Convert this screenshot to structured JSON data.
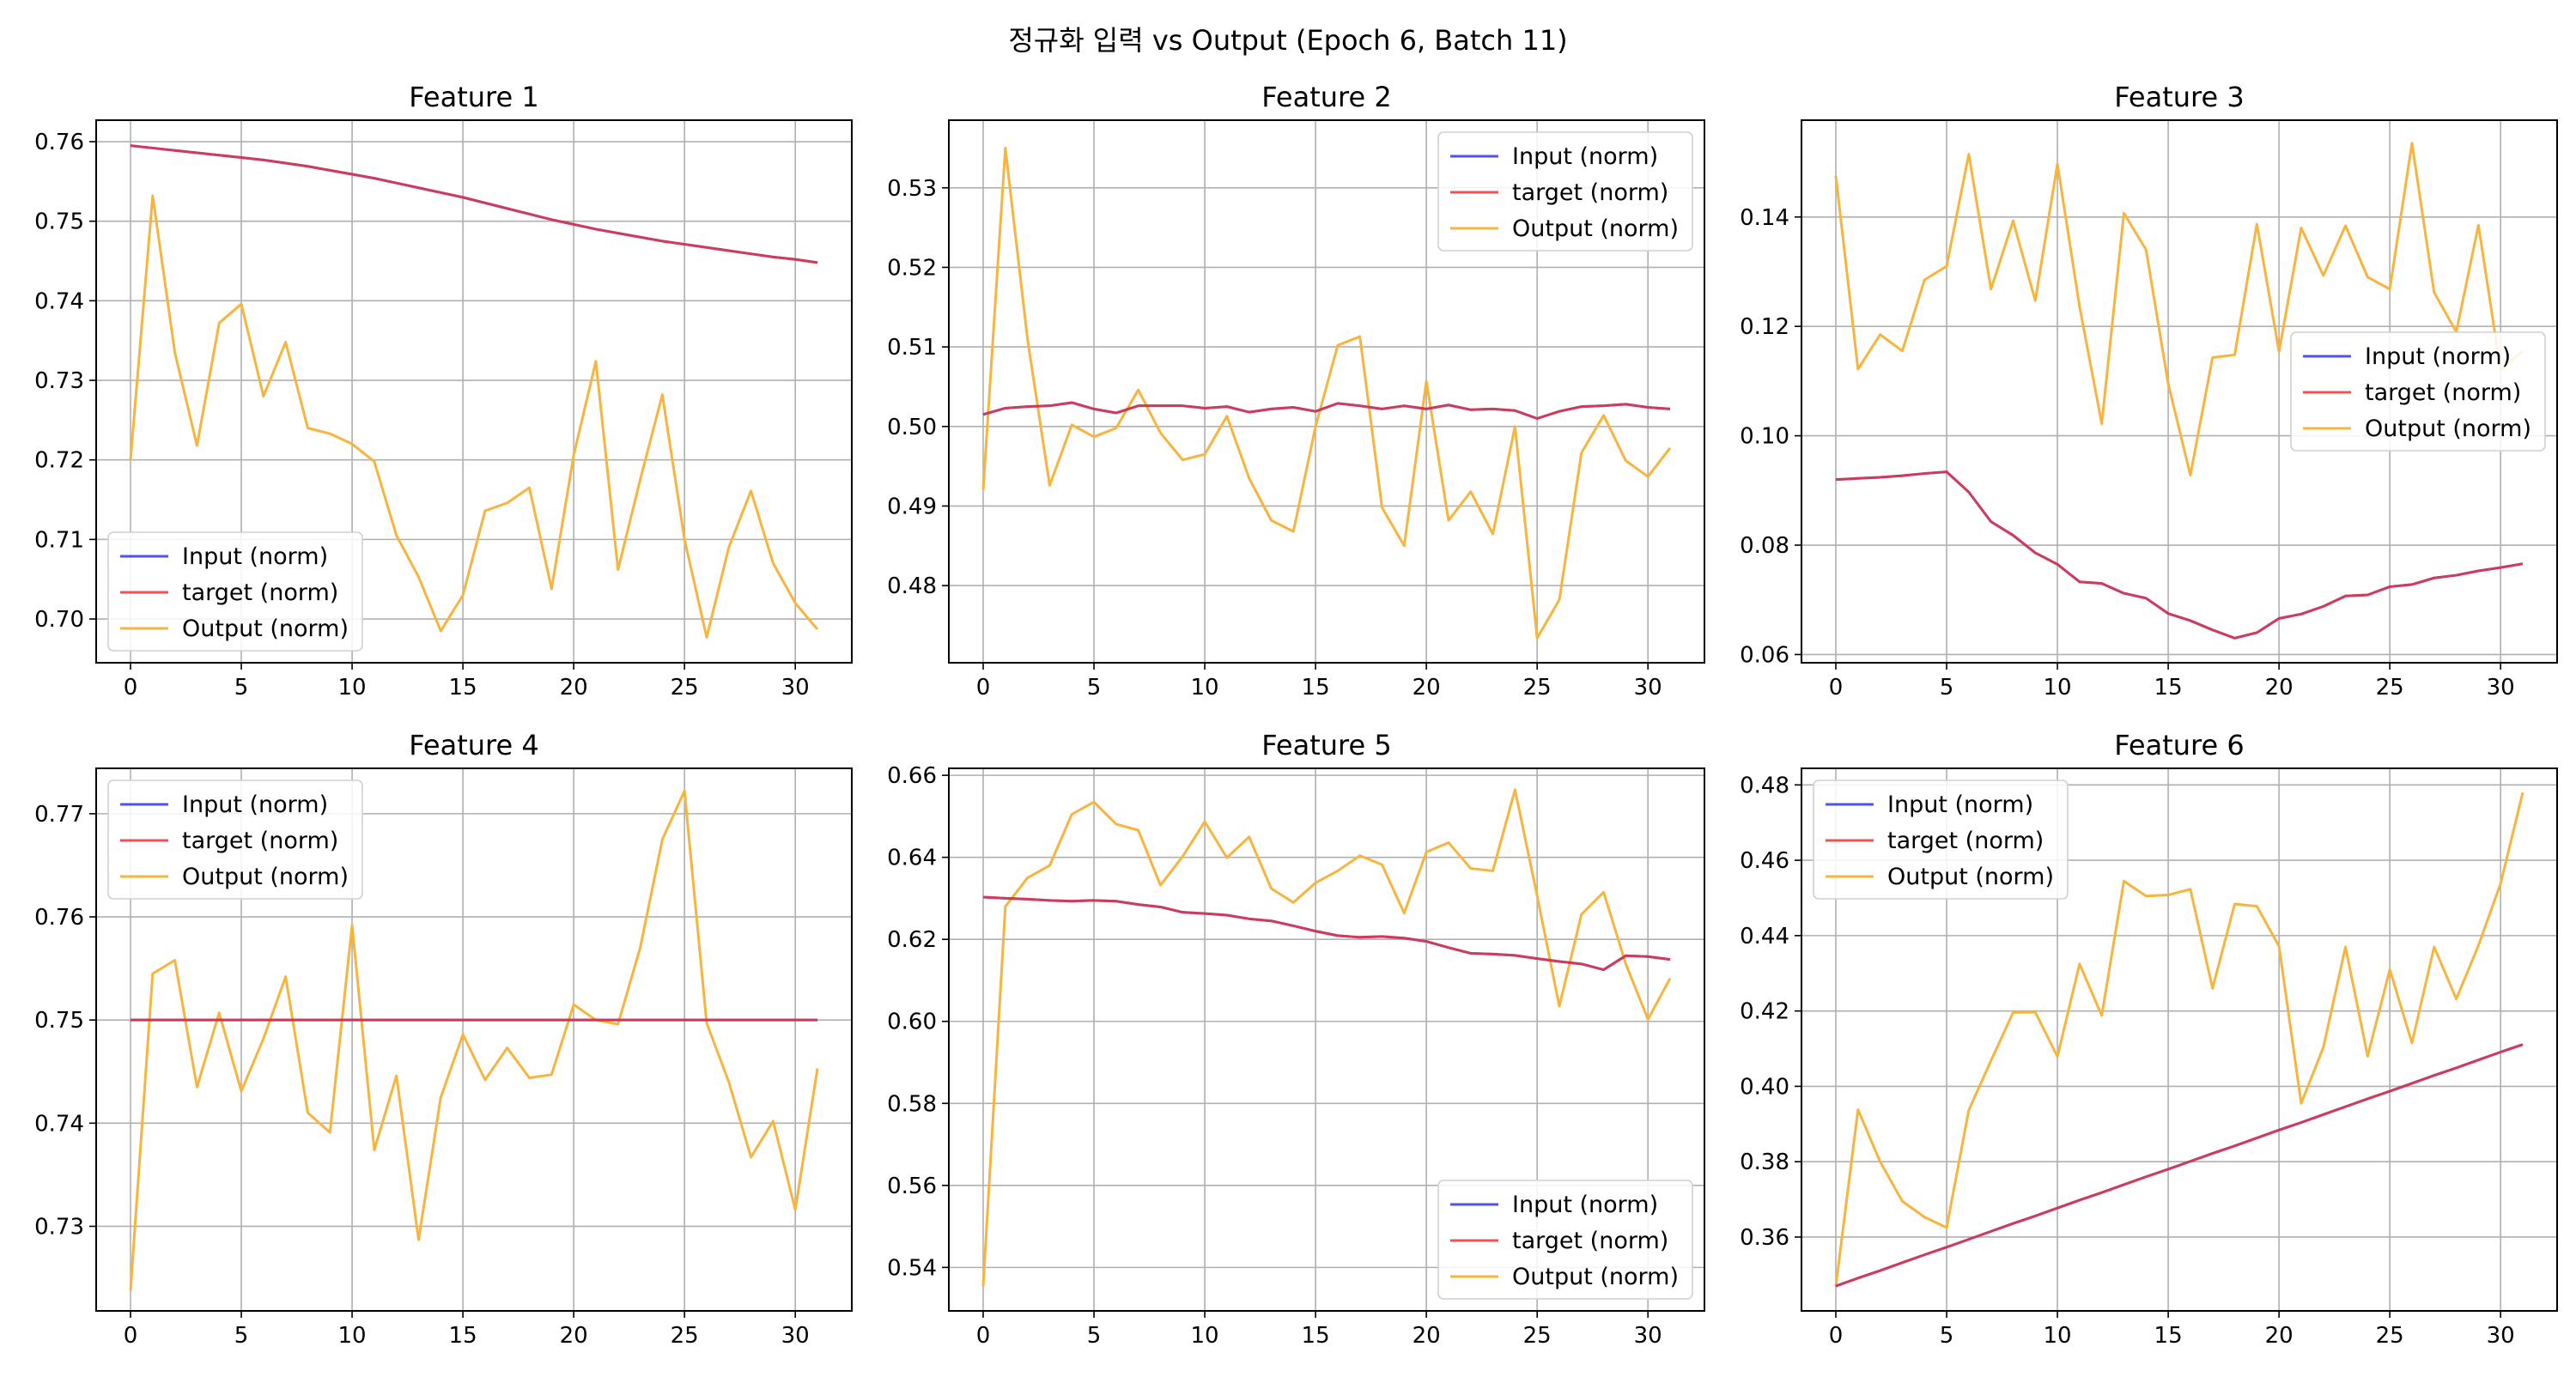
{
  "suptitle": "정규화 입력 vs Output (Epoch 6, Batch 11)",
  "legend_labels": [
    "Input (norm)",
    "target (norm)",
    "Output (norm)"
  ],
  "colors": {
    "input": "#3333ee",
    "target": "#ee3333",
    "overlap": "#c0134d",
    "output": "#f8b43c",
    "grid": "#b0b0b0"
  },
  "chart_data": [
    {
      "type": "line",
      "title": "Feature 1",
      "x": [
        0,
        1,
        2,
        3,
        4,
        5,
        6,
        7,
        8,
        9,
        10,
        11,
        12,
        13,
        14,
        15,
        16,
        17,
        18,
        19,
        20,
        21,
        22,
        23,
        24,
        25,
        26,
        27,
        28,
        29,
        30,
        31
      ],
      "xlim": [
        -1.55,
        32.55
      ],
      "xticks": [
        0,
        5,
        10,
        15,
        20,
        25,
        30
      ],
      "ylim": [
        0.6945,
        0.7627
      ],
      "yticks": [
        0.7,
        0.71,
        0.72,
        0.73,
        0.74,
        0.75,
        0.76
      ],
      "ytick_labels": [
        "0.70",
        "0.71",
        "0.72",
        "0.73",
        "0.74",
        "0.75",
        "0.76"
      ],
      "legend_loc": "lower-left",
      "series": [
        {
          "name": "Input (norm)",
          "values": [
            0.7595,
            0.7592,
            0.7589,
            0.7586,
            0.7583,
            0.758,
            0.7577,
            0.7573,
            0.7569,
            0.7564,
            0.7559,
            0.7554,
            0.7548,
            0.7542,
            0.7536,
            0.753,
            0.7523,
            0.7516,
            0.7509,
            0.7502,
            0.7496,
            0.749,
            0.7485,
            0.748,
            0.7475,
            0.7471,
            0.7467,
            0.7463,
            0.7459,
            0.7455,
            0.7452,
            0.7448
          ]
        },
        {
          "name": "target (norm)",
          "values": [
            0.7595,
            0.7592,
            0.7589,
            0.7586,
            0.7583,
            0.758,
            0.7577,
            0.7573,
            0.7569,
            0.7564,
            0.7559,
            0.7554,
            0.7548,
            0.7542,
            0.7536,
            0.753,
            0.7523,
            0.7516,
            0.7509,
            0.7502,
            0.7496,
            0.749,
            0.7485,
            0.748,
            0.7475,
            0.7471,
            0.7467,
            0.7463,
            0.7459,
            0.7455,
            0.7452,
            0.7448
          ]
        },
        {
          "name": "Output (norm)",
          "values": [
            0.72,
            0.7532,
            0.7335,
            0.7218,
            0.7372,
            0.7396,
            0.728,
            0.7348,
            0.724,
            0.7233,
            0.722,
            0.7198,
            0.7105,
            0.7053,
            0.6985,
            0.703,
            0.7136,
            0.7146,
            0.7165,
            0.7038,
            0.7206,
            0.7324,
            0.7062,
            0.7175,
            0.7282,
            0.71,
            0.6977,
            0.709,
            0.7161,
            0.707,
            0.702,
            0.6987
          ]
        }
      ]
    },
    {
      "type": "line",
      "title": "Feature 2",
      "x": [
        0,
        1,
        2,
        3,
        4,
        5,
        6,
        7,
        8,
        9,
        10,
        11,
        12,
        13,
        14,
        15,
        16,
        17,
        18,
        19,
        20,
        21,
        22,
        23,
        24,
        25,
        26,
        27,
        28,
        29,
        30,
        31
      ],
      "xlim": [
        -1.55,
        32.55
      ],
      "xticks": [
        0,
        5,
        10,
        15,
        20,
        25,
        30
      ],
      "ylim": [
        0.4703,
        0.5385
      ],
      "yticks": [
        0.48,
        0.49,
        0.5,
        0.51,
        0.52,
        0.53
      ],
      "ytick_labels": [
        "0.48",
        "0.49",
        "0.50",
        "0.51",
        "0.52",
        "0.53"
      ],
      "legend_loc": "upper-right",
      "series": [
        {
          "name": "Input (norm)",
          "values": [
            0.5015,
            0.5023,
            0.5025,
            0.5026,
            0.503,
            0.5022,
            0.5017,
            0.5026,
            0.5026,
            0.5026,
            0.5023,
            0.5025,
            0.5018,
            0.5022,
            0.5024,
            0.5019,
            0.5029,
            0.5026,
            0.5022,
            0.5026,
            0.5022,
            0.5027,
            0.5021,
            0.5022,
            0.502,
            0.501,
            0.5019,
            0.5025,
            0.5026,
            0.5028,
            0.5024,
            0.5022
          ]
        },
        {
          "name": "target (norm)",
          "values": [
            0.5015,
            0.5023,
            0.5025,
            0.5026,
            0.503,
            0.5022,
            0.5017,
            0.5026,
            0.5026,
            0.5026,
            0.5023,
            0.5025,
            0.5018,
            0.5022,
            0.5024,
            0.5019,
            0.5029,
            0.5026,
            0.5022,
            0.5026,
            0.5022,
            0.5027,
            0.5021,
            0.5022,
            0.502,
            0.501,
            0.5019,
            0.5025,
            0.5026,
            0.5028,
            0.5024,
            0.5022
          ]
        },
        {
          "name": "Output (norm)",
          "values": [
            0.492,
            0.535,
            0.511,
            0.4926,
            0.5002,
            0.4987,
            0.4998,
            0.5046,
            0.4992,
            0.4958,
            0.4965,
            0.5013,
            0.4935,
            0.4882,
            0.4868,
            0.5,
            0.5102,
            0.5113,
            0.4898,
            0.485,
            0.5057,
            0.4882,
            0.4918,
            0.4865,
            0.5,
            0.4734,
            0.4782,
            0.4967,
            0.5014,
            0.4957,
            0.4937,
            0.4973
          ]
        }
      ]
    },
    {
      "type": "line",
      "title": "Feature 3",
      "x": [
        0,
        1,
        2,
        3,
        4,
        5,
        6,
        7,
        8,
        9,
        10,
        11,
        12,
        13,
        14,
        15,
        16,
        17,
        18,
        19,
        20,
        21,
        22,
        23,
        24,
        25,
        26,
        27,
        28,
        29,
        30,
        31
      ],
      "xlim": [
        -1.55,
        32.55
      ],
      "xticks": [
        0,
        5,
        10,
        15,
        20,
        25,
        30
      ],
      "ylim": [
        0.0585,
        0.1577
      ],
      "yticks": [
        0.06,
        0.08,
        0.1,
        0.12,
        0.14
      ],
      "ytick_labels": [
        "0.06",
        "0.08",
        "0.10",
        "0.12",
        "0.14"
      ],
      "legend_loc": "center-right",
      "series": [
        {
          "name": "Input (norm)",
          "values": [
            0.092,
            0.0922,
            0.0924,
            0.0927,
            0.0931,
            0.0934,
            0.0897,
            0.0843,
            0.0818,
            0.0786,
            0.0765,
            0.0733,
            0.073,
            0.0712,
            0.0703,
            0.0675,
            0.0662,
            0.0645,
            0.063,
            0.064,
            0.0666,
            0.0674,
            0.0688,
            0.0707,
            0.0709,
            0.0724,
            0.0728,
            0.074,
            0.0745,
            0.0753,
            0.0759,
            0.0766
          ]
        },
        {
          "name": "target (norm)",
          "values": [
            0.092,
            0.0922,
            0.0924,
            0.0927,
            0.0931,
            0.0934,
            0.0897,
            0.0843,
            0.0818,
            0.0786,
            0.0765,
            0.0733,
            0.073,
            0.0712,
            0.0703,
            0.0675,
            0.0662,
            0.0645,
            0.063,
            0.064,
            0.0666,
            0.0674,
            0.0688,
            0.0707,
            0.0709,
            0.0724,
            0.0728,
            0.074,
            0.0745,
            0.0753,
            0.0759,
            0.0766
          ]
        },
        {
          "name": "Output (norm)",
          "values": [
            0.1475,
            0.1122,
            0.1185,
            0.1155,
            0.1285,
            0.131,
            0.1515,
            0.1268,
            0.1393,
            0.1247,
            0.1497,
            0.1236,
            0.1022,
            0.1407,
            0.134,
            0.1095,
            0.0928,
            0.1143,
            0.1148,
            0.1387,
            0.1154,
            0.138,
            0.1293,
            0.1384,
            0.129,
            0.1268,
            0.1535,
            0.1262,
            0.119,
            0.1385,
            0.112,
            0.1155
          ]
        }
      ]
    },
    {
      "type": "line",
      "title": "Feature 4",
      "x": [
        0,
        1,
        2,
        3,
        4,
        5,
        6,
        7,
        8,
        9,
        10,
        11,
        12,
        13,
        14,
        15,
        16,
        17,
        18,
        19,
        20,
        21,
        22,
        23,
        24,
        25,
        26,
        27,
        28,
        29,
        30,
        31
      ],
      "xlim": [
        -1.55,
        32.55
      ],
      "xticks": [
        0,
        5,
        10,
        15,
        20,
        25,
        30
      ],
      "ylim": [
        0.7218,
        0.7744
      ],
      "yticks": [
        0.73,
        0.74,
        0.75,
        0.76,
        0.77
      ],
      "ytick_labels": [
        "0.73",
        "0.74",
        "0.75",
        "0.76",
        "0.77"
      ],
      "legend_loc": "upper-left",
      "series": [
        {
          "name": "Input (norm)",
          "values": [
            0.75,
            0.75,
            0.75,
            0.75,
            0.75,
            0.75,
            0.75,
            0.75,
            0.75,
            0.75,
            0.75,
            0.75,
            0.75,
            0.75,
            0.75,
            0.75,
            0.75,
            0.75,
            0.75,
            0.75,
            0.75,
            0.75,
            0.75,
            0.75,
            0.75,
            0.75,
            0.75,
            0.75,
            0.75,
            0.75,
            0.75,
            0.75
          ]
        },
        {
          "name": "target (norm)",
          "values": [
            0.75,
            0.75,
            0.75,
            0.75,
            0.75,
            0.75,
            0.75,
            0.75,
            0.75,
            0.75,
            0.75,
            0.75,
            0.75,
            0.75,
            0.75,
            0.75,
            0.75,
            0.75,
            0.75,
            0.75,
            0.75,
            0.75,
            0.75,
            0.75,
            0.75,
            0.75,
            0.75,
            0.75,
            0.75,
            0.75,
            0.75,
            0.75
          ]
        },
        {
          "name": "Output (norm)",
          "values": [
            0.7238,
            0.7545,
            0.7558,
            0.7435,
            0.7507,
            0.7431,
            0.7482,
            0.7542,
            0.741,
            0.7391,
            0.7592,
            0.7374,
            0.7446,
            0.7287,
            0.7425,
            0.7486,
            0.7442,
            0.7473,
            0.7444,
            0.7447,
            0.7515,
            0.75,
            0.7496,
            0.757,
            0.7675,
            0.7722,
            0.7497,
            0.744,
            0.7367,
            0.7402,
            0.7316,
            0.7453
          ]
        }
      ]
    },
    {
      "type": "line",
      "title": "Feature 5",
      "x": [
        0,
        1,
        2,
        3,
        4,
        5,
        6,
        7,
        8,
        9,
        10,
        11,
        12,
        13,
        14,
        15,
        16,
        17,
        18,
        19,
        20,
        21,
        22,
        23,
        24,
        25,
        26,
        27,
        28,
        29,
        30,
        31
      ],
      "xlim": [
        -1.55,
        32.55
      ],
      "xticks": [
        0,
        5,
        10,
        15,
        20,
        25,
        30
      ],
      "ylim": [
        0.5294,
        0.6617
      ],
      "yticks": [
        0.54,
        0.56,
        0.58,
        0.6,
        0.62,
        0.64,
        0.66
      ],
      "ytick_labels": [
        "0.54",
        "0.56",
        "0.58",
        "0.60",
        "0.62",
        "0.64",
        "0.66"
      ],
      "legend_loc": "lower-right",
      "series": [
        {
          "name": "Input (norm)",
          "values": [
            0.6303,
            0.63,
            0.6298,
            0.6295,
            0.6293,
            0.6295,
            0.6293,
            0.6285,
            0.6279,
            0.6266,
            0.6263,
            0.6259,
            0.625,
            0.6245,
            0.6233,
            0.622,
            0.6209,
            0.6205,
            0.6207,
            0.6203,
            0.6195,
            0.618,
            0.6166,
            0.6164,
            0.6161,
            0.6153,
            0.6146,
            0.614,
            0.6126,
            0.616,
            0.6158,
            0.6151
          ]
        },
        {
          "name": "target (norm)",
          "values": [
            0.6303,
            0.63,
            0.6298,
            0.6295,
            0.6293,
            0.6295,
            0.6293,
            0.6285,
            0.6279,
            0.6266,
            0.6263,
            0.6259,
            0.625,
            0.6245,
            0.6233,
            0.622,
            0.6209,
            0.6205,
            0.6207,
            0.6203,
            0.6195,
            0.618,
            0.6166,
            0.6164,
            0.6161,
            0.6153,
            0.6146,
            0.614,
            0.6126,
            0.616,
            0.6158,
            0.6151
          ]
        },
        {
          "name": "Output (norm)",
          "values": [
            0.5354,
            0.628,
            0.635,
            0.638,
            0.6505,
            0.6535,
            0.6481,
            0.6466,
            0.6332,
            0.6402,
            0.6487,
            0.6399,
            0.645,
            0.6324,
            0.629,
            0.6338,
            0.6367,
            0.6404,
            0.6382,
            0.6264,
            0.6413,
            0.6436,
            0.6373,
            0.6367,
            0.6565,
            0.6306,
            0.6037,
            0.6261,
            0.6315,
            0.614,
            0.6005,
            0.6105
          ]
        }
      ]
    },
    {
      "type": "line",
      "title": "Feature 6",
      "x": [
        0,
        1,
        2,
        3,
        4,
        5,
        6,
        7,
        8,
        9,
        10,
        11,
        12,
        13,
        14,
        15,
        16,
        17,
        18,
        19,
        20,
        21,
        22,
        23,
        24,
        25,
        26,
        27,
        28,
        29,
        30,
        31
      ],
      "xlim": [
        -1.55,
        32.55
      ],
      "xticks": [
        0,
        5,
        10,
        15,
        20,
        25,
        30
      ],
      "ylim": [
        0.3404,
        0.4844
      ],
      "yticks": [
        0.36,
        0.38,
        0.4,
        0.42,
        0.44,
        0.46,
        0.48
      ],
      "ytick_labels": [
        "0.36",
        "0.38",
        "0.40",
        "0.42",
        "0.44",
        "0.46",
        "0.48"
      ],
      "legend_loc": "upper-left",
      "series": [
        {
          "name": "Input (norm)",
          "values": [
            0.347,
            0.3491,
            0.3511,
            0.3532,
            0.3553,
            0.3573,
            0.3594,
            0.3615,
            0.3636,
            0.3656,
            0.3677,
            0.3698,
            0.3718,
            0.3739,
            0.376,
            0.378,
            0.3801,
            0.3822,
            0.3842,
            0.3863,
            0.3884,
            0.3904,
            0.3925,
            0.3946,
            0.3967,
            0.3987,
            0.4008,
            0.4029,
            0.4049,
            0.407,
            0.4091,
            0.4111
          ]
        },
        {
          "name": "target (norm)",
          "values": [
            0.347,
            0.3491,
            0.3511,
            0.3532,
            0.3553,
            0.3573,
            0.3594,
            0.3615,
            0.3636,
            0.3656,
            0.3677,
            0.3698,
            0.3718,
            0.3739,
            0.376,
            0.378,
            0.3801,
            0.3822,
            0.3842,
            0.3863,
            0.3884,
            0.3904,
            0.3925,
            0.3946,
            0.3967,
            0.3987,
            0.4008,
            0.4029,
            0.4049,
            0.407,
            0.4091,
            0.4111
          ]
        },
        {
          "name": "Output (norm)",
          "values": [
            0.347,
            0.3938,
            0.38,
            0.3695,
            0.3653,
            0.3625,
            0.3937,
            0.4068,
            0.4196,
            0.4197,
            0.4079,
            0.4325,
            0.4188,
            0.4545,
            0.4505,
            0.4508,
            0.4523,
            0.426,
            0.4484,
            0.4478,
            0.4372,
            0.3955,
            0.4103,
            0.437,
            0.408,
            0.431,
            0.4115,
            0.437,
            0.4232,
            0.4374,
            0.4538,
            0.478
          ]
        }
      ]
    }
  ]
}
